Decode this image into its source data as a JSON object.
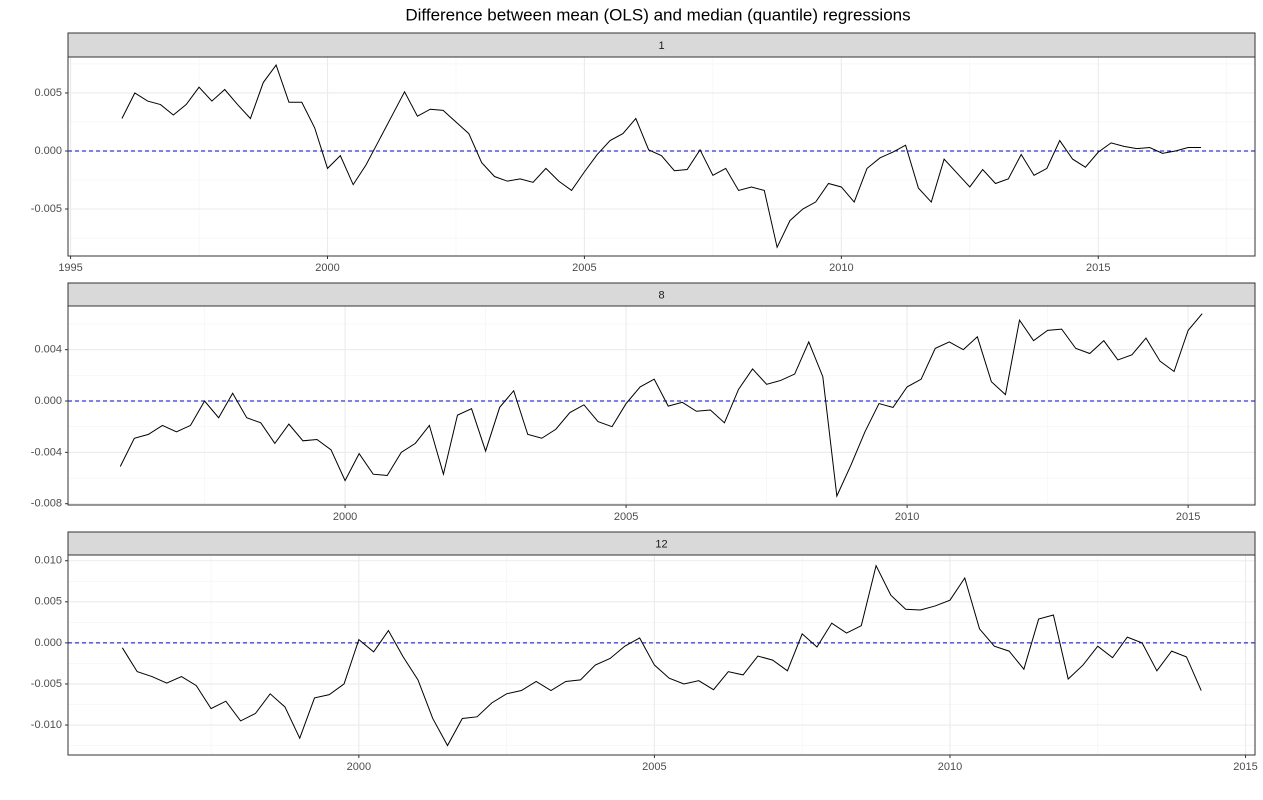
{
  "title": "Difference between mean (OLS) and median (quantile) regressions",
  "chart_data": [
    {
      "type": "line",
      "panel": "1",
      "x": [
        1996,
        1996.25,
        1996.5,
        1996.75,
        1997,
        1997.25,
        1997.5,
        1997.75,
        1998,
        1998.25,
        1998.5,
        1998.75,
        1999,
        1999.25,
        1999.5,
        1999.75,
        2000,
        2000.25,
        2000.5,
        2000.75,
        2001,
        2001.25,
        2001.5,
        2001.75,
        2002,
        2002.25,
        2002.5,
        2002.75,
        2003,
        2003.25,
        2003.5,
        2003.75,
        2004,
        2004.25,
        2004.5,
        2004.75,
        2005,
        2005.25,
        2005.5,
        2005.75,
        2006,
        2006.25,
        2006.5,
        2006.75,
        2007,
        2007.25,
        2007.5,
        2007.75,
        2008,
        2008.25,
        2008.5,
        2008.75,
        2009,
        2009.25,
        2009.5,
        2009.75,
        2010,
        2010.25,
        2010.5,
        2010.75,
        2011,
        2011.25,
        2011.5,
        2011.75,
        2012,
        2012.25,
        2012.5,
        2012.75,
        2013,
        2013.25,
        2013.5,
        2013.75,
        2014,
        2014.25,
        2014.5,
        2014.75,
        2015,
        2015.25,
        2015.5,
        2015.75,
        2016,
        2016.25,
        2016.5,
        2016.75,
        2017
      ],
      "series": [
        {
          "color": "#000000",
          "values": [
            0.0028,
            0.005,
            0.0043,
            0.004,
            0.0031,
            0.004,
            0.0055,
            0.0043,
            0.0053,
            0.004,
            0.0028,
            0.0059,
            0.0074,
            0.0042,
            0.0042,
            0.002,
            -0.0015,
            -0.0004,
            -0.0029,
            -0.0012,
            0.0009,
            0.003,
            0.0051,
            0.003,
            0.0036,
            0.0035,
            0.0025,
            0.0015,
            -0.001,
            -0.0022,
            -0.0026,
            -0.0024,
            -0.0027,
            -0.0015,
            -0.0026,
            -0.0034,
            -0.0018,
            -0.0003,
            0.0009,
            0.0015,
            0.0028,
            0.0001,
            -0.0004,
            -0.0017,
            -0.0016,
            0.0001,
            -0.0021,
            -0.0015,
            -0.0034,
            -0.0031,
            -0.0034,
            -0.0083,
            -0.006,
            -0.005,
            -0.0044,
            -0.0028,
            -0.0031,
            -0.0044,
            -0.0015,
            -0.0006,
            -0.0001,
            0.0005,
            -0.0032,
            -0.0044,
            -0.0007,
            -0.0019,
            -0.0031,
            -0.0016,
            -0.0028,
            -0.0024,
            -0.0003,
            -0.0021,
            -0.0015,
            0.0009,
            -0.0007,
            -0.0014,
            -0.0001,
            0.0007,
            0.0004,
            0.0002,
            0.0003,
            -0.0002,
            0,
            0.0003,
            0.0003
          ]
        }
      ],
      "reference_line": {
        "value": 0,
        "color": "#0000cd",
        "dashed": true
      },
      "xlim": [
        1994.95,
        2018.05
      ],
      "xticks": [
        1995,
        2000,
        2005,
        2010,
        2015
      ],
      "ylim": [
        -0.00905,
        0.0081
      ],
      "yticks": [
        -0.005,
        {
          "value": 0,
          "label": "0.000"
        },
        0.005
      ],
      "grid": true
    },
    {
      "type": "line",
      "panel": "8",
      "x": [
        1996,
        1996.25,
        1996.5,
        1996.75,
        1997,
        1997.25,
        1997.5,
        1997.75,
        1998,
        1998.25,
        1998.5,
        1998.75,
        1999,
        1999.25,
        1999.5,
        1999.75,
        2000,
        2000.25,
        2000.5,
        2000.75,
        2001,
        2001.25,
        2001.5,
        2001.75,
        2002,
        2002.25,
        2002.5,
        2002.75,
        2003,
        2003.25,
        2003.5,
        2003.75,
        2004,
        2004.25,
        2004.5,
        2004.75,
        2005,
        2005.25,
        2005.5,
        2005.75,
        2006,
        2006.25,
        2006.5,
        2006.75,
        2007,
        2007.25,
        2007.5,
        2007.75,
        2008,
        2008.25,
        2008.5,
        2008.75,
        2009,
        2009.25,
        2009.5,
        2009.75,
        2010,
        2010.25,
        2010.5,
        2010.75,
        2011,
        2011.25,
        2011.5,
        2011.75,
        2012,
        2012.25,
        2012.5,
        2012.75,
        2013,
        2013.25,
        2013.5,
        2013.75,
        2014,
        2014.25,
        2014.5,
        2014.75,
        2015,
        2015.25
      ],
      "series": [
        {
          "color": "#000000",
          "values": [
            -0.0051,
            -0.0029,
            -0.0026,
            -0.0019,
            -0.0024,
            -0.0019,
            0,
            -0.0013,
            0.0006,
            -0.0013,
            -0.0017,
            -0.0033,
            -0.0018,
            -0.0031,
            -0.003,
            -0.0038,
            -0.0062,
            -0.0041,
            -0.0057,
            -0.0058,
            -0.004,
            -0.0033,
            -0.0019,
            -0.0057,
            -0.0011,
            -0.0006,
            -0.0039,
            -0.0005,
            0.0008,
            -0.0026,
            -0.0029,
            -0.0022,
            -0.0009,
            -0.0003,
            -0.0016,
            -0.002,
            -0.0002,
            0.0011,
            0.0017,
            -0.0004,
            -0.0001,
            -0.0008,
            -0.0007,
            -0.0017,
            0.0009,
            0.0025,
            0.0013,
            0.0016,
            0.0021,
            0.0046,
            0.0019,
            -0.0074,
            -0.005,
            -0.0024,
            -0.0002,
            -0.0005,
            0.0011,
            0.0017,
            0.0041,
            0.0046,
            0.004,
            0.005,
            0.0015,
            0.0005,
            0.0063,
            0.0047,
            0.0055,
            0.0056,
            0.0041,
            0.0037,
            0.0047,
            0.0032,
            0.0036,
            0.0049,
            0.0031,
            0.0023,
            0.0055,
            0.0068
          ]
        }
      ],
      "reference_line": {
        "value": 0,
        "color": "#0000cd",
        "dashed": true
      },
      "xlim": [
        1995.07,
        2016.19
      ],
      "xticks": [
        2000,
        2005,
        2010,
        2015
      ],
      "ylim": [
        -0.0081,
        0.0074
      ],
      "yticks": [
        -0.008,
        -0.004,
        {
          "value": 0,
          "label": "0.000"
        },
        0.004
      ],
      "grid": true
    },
    {
      "type": "line",
      "panel": "12",
      "x": [
        1996,
        1996.25,
        1996.5,
        1996.75,
        1997,
        1997.25,
        1997.5,
        1997.75,
        1998,
        1998.25,
        1998.5,
        1998.75,
        1999,
        1999.25,
        1999.5,
        1999.75,
        2000,
        2000.25,
        2000.5,
        2000.75,
        2001,
        2001.25,
        2001.5,
        2001.75,
        2002,
        2002.25,
        2002.5,
        2002.75,
        2003,
        2003.25,
        2003.5,
        2003.75,
        2004,
        2004.25,
        2004.5,
        2004.75,
        2005,
        2005.25,
        2005.5,
        2005.75,
        2006,
        2006.25,
        2006.5,
        2006.75,
        2007,
        2007.25,
        2007.5,
        2007.75,
        2008,
        2008.25,
        2008.5,
        2008.75,
        2009,
        2009.25,
        2009.5,
        2009.75,
        2010,
        2010.25,
        2010.5,
        2010.75,
        2011,
        2011.25,
        2011.5,
        2011.75,
        2012,
        2012.25,
        2012.5,
        2012.75,
        2013,
        2013.25,
        2013.5,
        2013.75,
        2014,
        2014.25
      ],
      "series": [
        {
          "color": "#000000",
          "values": [
            -0.0006,
            -0.0035,
            -0.0041,
            -0.0049,
            -0.0041,
            -0.0052,
            -0.008,
            -0.0071,
            -0.0095,
            -0.0086,
            -0.0062,
            -0.0078,
            -0.0116,
            -0.0067,
            -0.0063,
            -0.005,
            0.0004,
            -0.0011,
            0.0015,
            -0.0017,
            -0.0045,
            -0.0092,
            -0.0125,
            -0.0092,
            -0.009,
            -0.0073,
            -0.0062,
            -0.0058,
            -0.0047,
            -0.0058,
            -0.0047,
            -0.0045,
            -0.0027,
            -0.0019,
            -0.0004,
            0.0006,
            -0.0027,
            -0.0043,
            -0.005,
            -0.0046,
            -0.0057,
            -0.0035,
            -0.0039,
            -0.0016,
            -0.0021,
            -0.0034,
            0.0011,
            -0.0005,
            0.0024,
            0.0012,
            0.0021,
            0.0094,
            0.0058,
            0.0041,
            0.004,
            0.0045,
            0.0052,
            0.0079,
            0.0017,
            -0.0004,
            -0.001,
            -0.0032,
            0.0029,
            0.0034,
            -0.0044,
            -0.0027,
            -0.0004,
            -0.0018,
            0.0007,
            0,
            -0.0034,
            -0.001,
            -0.0017,
            -0.0058
          ]
        }
      ],
      "reference_line": {
        "value": 0,
        "color": "#0000cd",
        "dashed": true
      },
      "xlim": [
        1995.08,
        2015.16
      ],
      "xticks": [
        2000,
        2005,
        2010,
        2015
      ],
      "ylim": [
        -0.01365,
        0.0107
      ],
      "yticks": [
        {
          "value": -0.01,
          "label": "-0.010"
        },
        -0.005,
        {
          "value": 0,
          "label": "0.000"
        },
        0.005,
        {
          "value": 0.01,
          "label": "0.010"
        }
      ],
      "grid": true
    }
  ]
}
